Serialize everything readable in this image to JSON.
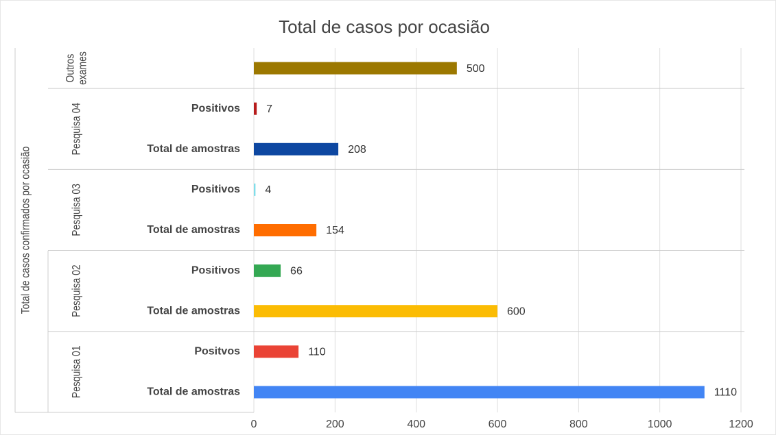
{
  "chart_data": {
    "type": "bar",
    "title": "Total de casos por ocasião",
    "y_label": "Total de casos confirmados por ocasião",
    "groups": [
      {
        "name": "Outros exames",
        "categories": [
          null
        ],
        "values": [
          500
        ],
        "colors": [
          "#9c7800"
        ]
      },
      {
        "name": "Pesquisa 04",
        "categories": [
          "Positivos",
          "Total de amostras"
        ],
        "values": [
          7,
          208
        ],
        "colors": [
          "#b71c1c",
          "#0d47a1"
        ]
      },
      {
        "name": "Pesquisa 03",
        "categories": [
          "Positivos",
          "Total de amostras"
        ],
        "values": [
          4,
          154
        ],
        "colors": [
          "#80deea",
          "#ff6d00"
        ]
      },
      {
        "name": "Pesquisa 02",
        "categories": [
          "Positivos",
          "Total de amostras"
        ],
        "values": [
          66,
          600
        ],
        "colors": [
          "#34a853",
          "#fbbc04"
        ]
      },
      {
        "name": "Pesquisa 01",
        "categories": [
          "Positvos",
          "Total de amostras"
        ],
        "values": [
          110,
          1110
        ],
        "colors": [
          "#ea4335",
          "#4285f4"
        ]
      }
    ],
    "xlim": [
      0,
      1200
    ],
    "xticks": [
      0,
      200,
      400,
      600,
      800,
      1000,
      1200
    ],
    "grid": true
  }
}
